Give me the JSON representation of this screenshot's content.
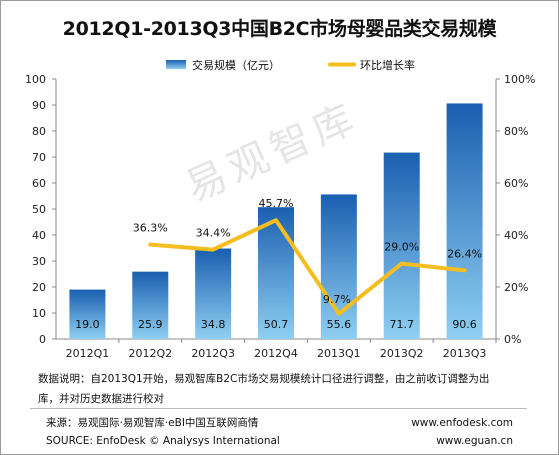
{
  "title": "2012Q1-2013Q3中国B2C市场母婴品类交易规模",
  "watermark": "易观智库",
  "chart_data": {
    "type": "bar",
    "title": "2012Q1-2013Q3中国B2C市场母婴品类交易规模",
    "categories": [
      "2012Q1",
      "2012Q2",
      "2012Q3",
      "2012Q4",
      "2013Q1",
      "2013Q2",
      "2013Q3"
    ],
    "series": [
      {
        "name": "交易规模（亿元）",
        "type": "bar",
        "axis": "left",
        "values": [
          19.0,
          25.9,
          34.8,
          50.7,
          55.6,
          71.7,
          90.6
        ],
        "labels": [
          "19.0",
          "25.9",
          "34.8",
          "50.7",
          "55.6",
          "71.7",
          "90.6"
        ]
      },
      {
        "name": "环比增长率",
        "type": "line",
        "axis": "right",
        "values": [
          null,
          36.3,
          34.4,
          45.7,
          9.7,
          29.0,
          26.4
        ],
        "labels": [
          "",
          "36.3%",
          "34.4%",
          "45.7%",
          "9.7%",
          "29.0%",
          "26.4%"
        ]
      }
    ],
    "y_left": {
      "min": 0,
      "max": 100,
      "ticks": [
        "0",
        "10",
        "20",
        "30",
        "40",
        "50",
        "60",
        "70",
        "80",
        "90",
        "100"
      ]
    },
    "y_right": {
      "min": 0,
      "max": 100,
      "ticks": [
        "0%",
        "20%",
        "40%",
        "60%",
        "80%",
        "100%"
      ]
    },
    "legend_position": "top",
    "grid": false,
    "colors": {
      "bar_light": "#8fcff2",
      "bar_dark": "#1a5fb0",
      "line": "#f5bd1f"
    }
  },
  "notes": {
    "line1": "数据说明：自2013Q1开始，易观智库B2C市场交易规模统计口径进行调整，由之前收订调整为出",
    "line2": "库，并对历史数据进行校对"
  },
  "footer": {
    "source_cn": "来源：易观国际·易观智库·eBI中国互联网商情",
    "source_en": "SOURCE: EnfoDesk © Analysys International",
    "site1": "www.enfodesk.com",
    "site2": "www.eguan.cn"
  }
}
